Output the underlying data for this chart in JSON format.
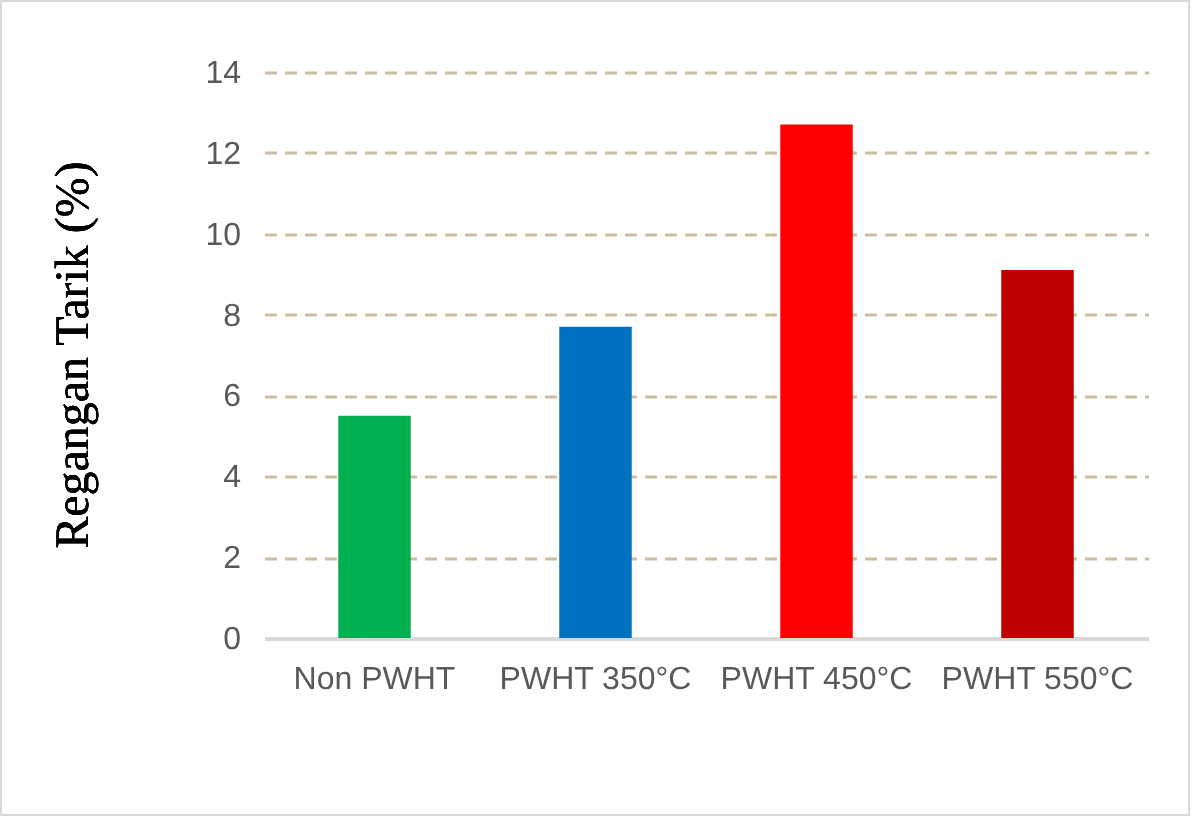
{
  "chart_data": {
    "type": "bar",
    "ylabel": "Regangan Tarik (%)",
    "categories": [
      "Non PWHT",
      "PWHT\n350°C",
      "PWHT\n450°C",
      "PWHT\n550°C"
    ],
    "values": [
      5.5,
      7.7,
      12.7,
      9.1
    ],
    "colors": [
      "#00b050",
      "#0070c0",
      "#ff0000",
      "#c00000"
    ],
    "ylim": [
      0,
      14
    ],
    "yticks": [
      0,
      2,
      4,
      6,
      8,
      10,
      12,
      14
    ],
    "grid": "y"
  }
}
